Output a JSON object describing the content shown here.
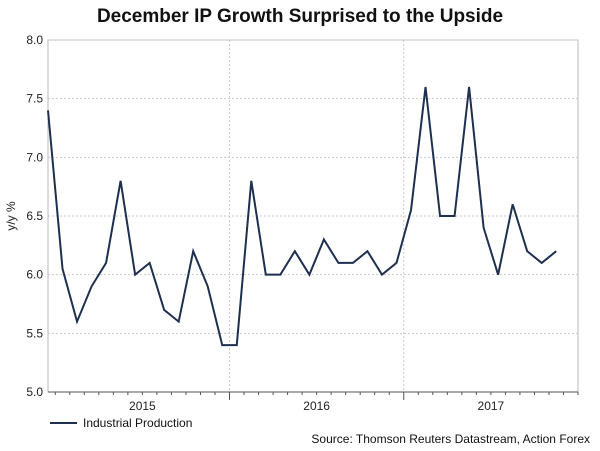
{
  "chart_data": {
    "type": "line",
    "title": "December IP Growth Surprised to the Upside",
    "xlabel": "",
    "ylabel": "y/y %",
    "ylim": [
      5.0,
      8.0
    ],
    "yticks": [
      5.0,
      5.5,
      6.0,
      6.5,
      7.0,
      7.5,
      8.0
    ],
    "ytick_labels": [
      "5.0",
      "5.5",
      "6.0",
      "6.5",
      "7.0",
      "7.5",
      "8.0"
    ],
    "xlim": [
      0,
      36.5
    ],
    "year_labels": [
      {
        "label": "2015",
        "center": 6.5
      },
      {
        "label": "2016",
        "center": 18.5
      },
      {
        "label": "2017",
        "center": 30.5
      }
    ],
    "year_dividers": [
      12.5,
      24.5
    ],
    "grid": true,
    "series": [
      {
        "name": "Industrial Production",
        "color": "#1f2f4f",
        "x": [
          0,
          1,
          2,
          3,
          4,
          5,
          6,
          7,
          8,
          9,
          10,
          11,
          12,
          13,
          14,
          15,
          16,
          17,
          18,
          19,
          20,
          21,
          22,
          23,
          24,
          25,
          26,
          27,
          28,
          29,
          30,
          31,
          32,
          33,
          34,
          35
        ],
        "values": [
          7.4,
          6.05,
          5.6,
          5.9,
          6.1,
          6.8,
          6.0,
          6.1,
          5.7,
          5.6,
          6.2,
          5.9,
          5.4,
          5.4,
          6.8,
          6.0,
          6.0,
          6.2,
          6.0,
          6.3,
          6.1,
          6.1,
          6.2,
          6.0,
          6.1,
          6.55,
          7.6,
          6.5,
          6.5,
          7.6,
          6.4,
          6.0,
          6.6,
          6.2,
          6.1,
          6.2
        ]
      }
    ]
  },
  "legend": {
    "label": "Industrial Production",
    "color": "#1f2f4f"
  },
  "source": "Source: Thomson Reuters Datastream, Action Forex"
}
